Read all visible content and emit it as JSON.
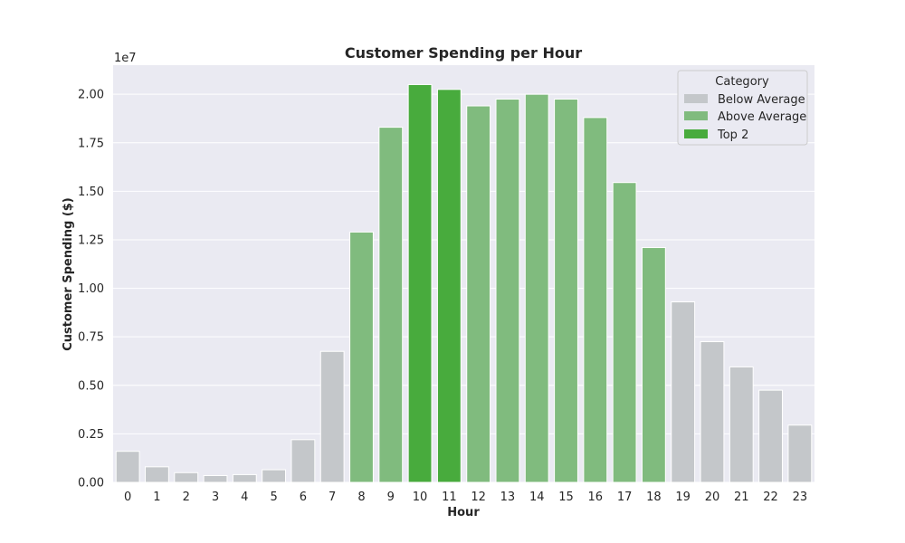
{
  "chart_data": {
    "type": "bar",
    "title": "Customer Spending per Hour",
    "xlabel": "Hour",
    "ylabel": "Customer Spending ($)",
    "scale_label": "1e7",
    "ylim": [
      0,
      2.15
    ],
    "yticks": [
      "0.00",
      "0.25",
      "0.50",
      "0.75",
      "1.00",
      "1.25",
      "1.50",
      "1.75",
      "2.00"
    ],
    "grid": true,
    "legend_position": "top-right",
    "legend_title": "Category",
    "categories": [
      "0",
      "1",
      "2",
      "3",
      "4",
      "5",
      "6",
      "7",
      "8",
      "9",
      "10",
      "11",
      "12",
      "13",
      "14",
      "15",
      "16",
      "17",
      "18",
      "19",
      "20",
      "21",
      "22",
      "23"
    ],
    "values": [
      0.16,
      0.08,
      0.05,
      0.035,
      0.04,
      0.065,
      0.22,
      0.675,
      1.29,
      1.83,
      2.05,
      2.025,
      1.94,
      1.975,
      2.0,
      1.975,
      1.88,
      1.545,
      1.21,
      0.93,
      0.725,
      0.595,
      0.475,
      0.295
    ],
    "value_units": "x 1e7",
    "bar_category": [
      "Below Average",
      "Below Average",
      "Below Average",
      "Below Average",
      "Below Average",
      "Below Average",
      "Below Average",
      "Below Average",
      "Above Average",
      "Above Average",
      "Top 2",
      "Top 2",
      "Above Average",
      "Above Average",
      "Above Average",
      "Above Average",
      "Above Average",
      "Above Average",
      "Above Average",
      "Below Average",
      "Below Average",
      "Below Average",
      "Below Average",
      "Below Average"
    ],
    "legend": [
      {
        "label": "Below Average",
        "color": "#c4c7ca"
      },
      {
        "label": "Above Average",
        "color": "#80bb7e"
      },
      {
        "label": "Top 2",
        "color": "#48ab3d"
      }
    ],
    "colors": {
      "plot_background": "#eaeaf2",
      "grid": "#ffffff"
    }
  }
}
